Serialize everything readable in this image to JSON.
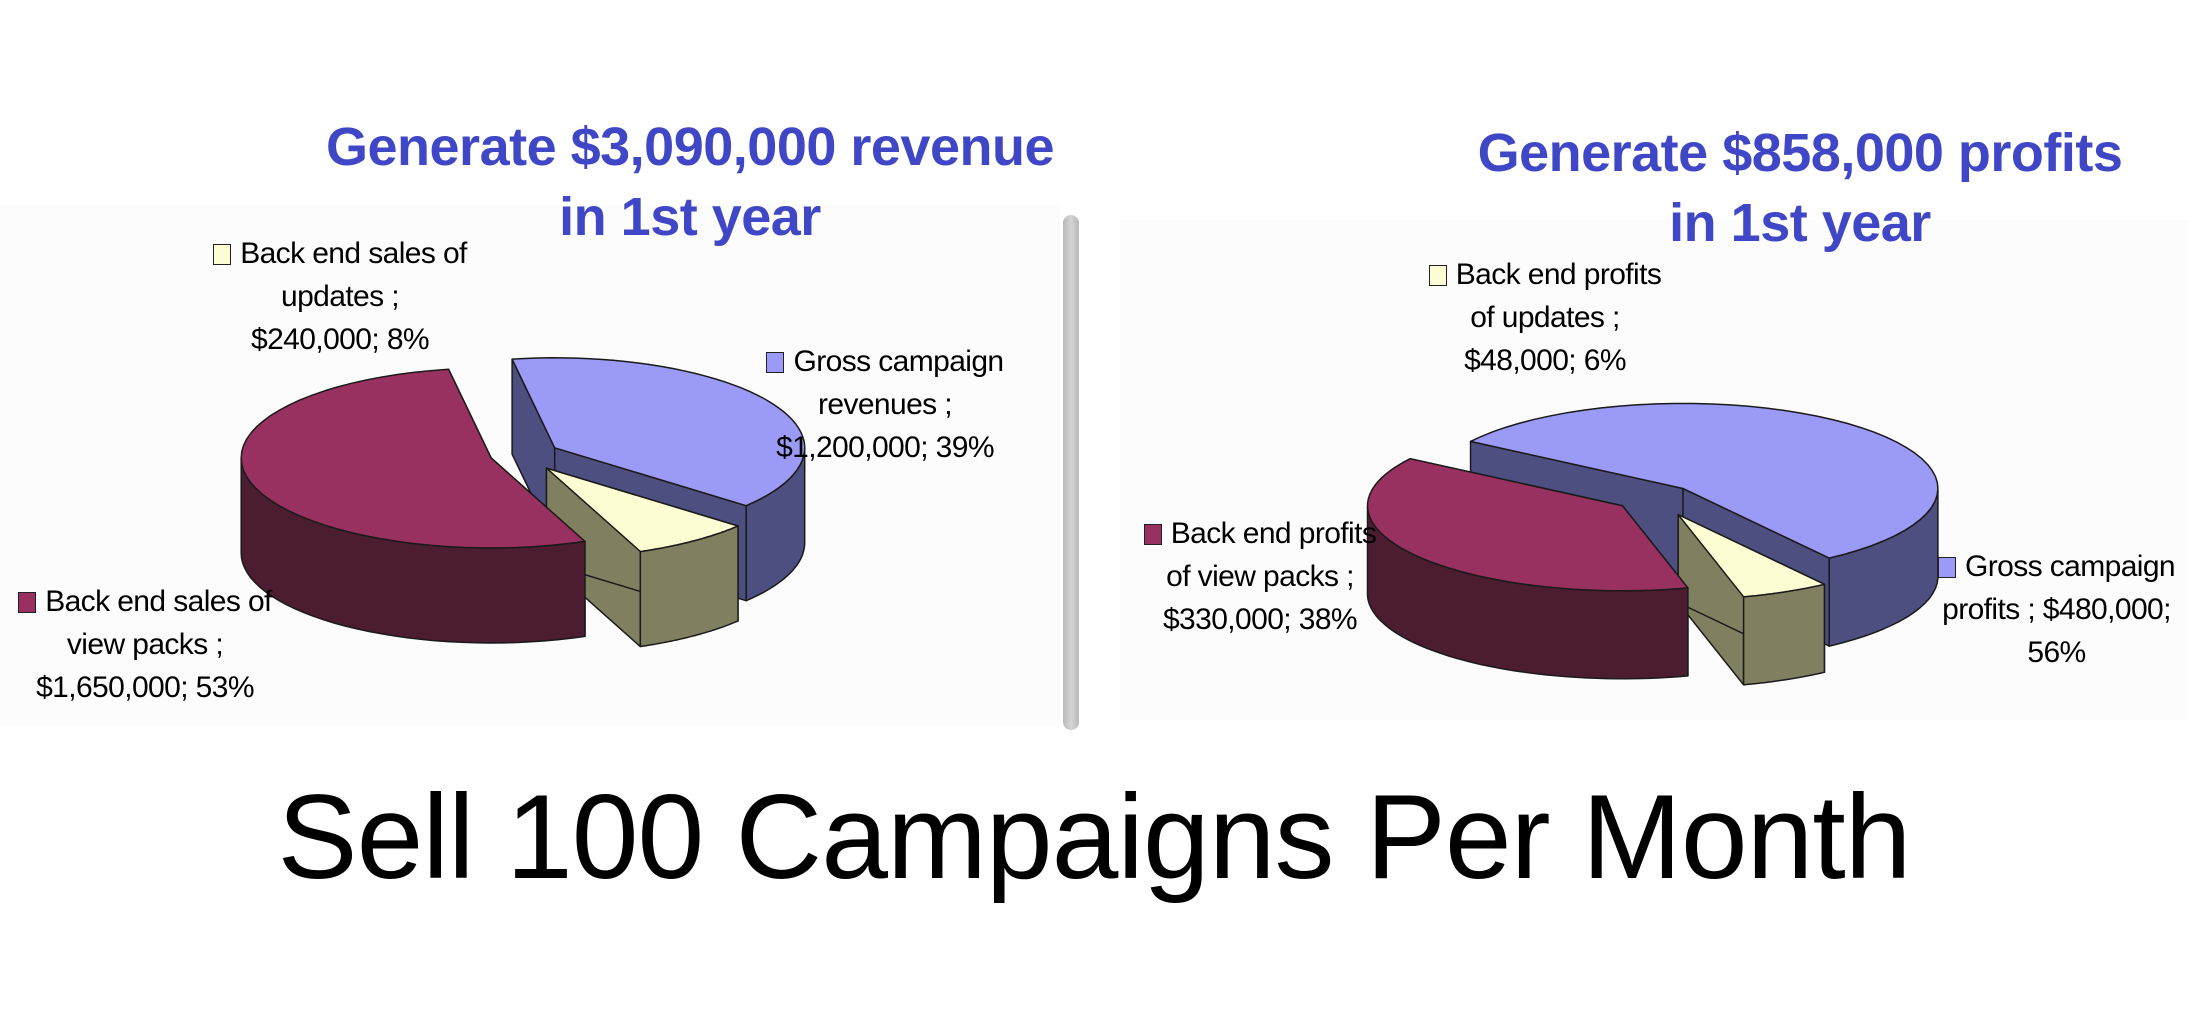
{
  "colors": {
    "title": "#3f47c6",
    "gross_top": "#9b9bf7",
    "gross_side": "#4d4f80",
    "view_top": "#993160",
    "view_side": "#4c1d31",
    "updates_top": "#fdfdd3",
    "updates_side": "#808060"
  },
  "chart_data": [
    {
      "type": "pie",
      "title": "Generate $3,090,000 revenue in 1st year",
      "title_lines": [
        "Generate $3,090,000 revenue",
        "in 1st year"
      ],
      "slices": [
        {
          "name": "Gross campaign revenues",
          "value": 1200000,
          "percent": 39,
          "label_lines": [
            "Gross campaign",
            "revenues ;",
            "$1,200,000; 39%"
          ]
        },
        {
          "name": "Back end sales of view packs",
          "value": 1650000,
          "percent": 53,
          "label_lines": [
            "Back end sales of",
            "view packs ;",
            "$1,650,000; 53%"
          ]
        },
        {
          "name": "Back end sales of updates",
          "value": 240000,
          "percent": 8,
          "label_lines": [
            "Back end sales of",
            "updates ;",
            "$240,000; 8%"
          ]
        }
      ],
      "legend": "none",
      "three_d": true
    },
    {
      "type": "pie",
      "title": "Generate $858,000 profits in 1st year",
      "title_lines": [
        "Generate $858,000 profits",
        "in 1st year"
      ],
      "slices": [
        {
          "name": "Gross campaign profits",
          "value": 480000,
          "percent": 56,
          "label_lines": [
            "Gross campaign",
            "profits ; $480,000;",
            "56%"
          ]
        },
        {
          "name": "Back end profits of view packs",
          "value": 330000,
          "percent": 38,
          "label_lines": [
            "Back end profits",
            "of view packs ;",
            "$330,000; 38%"
          ]
        },
        {
          "name": "Back end profits of updates",
          "value": 48000,
          "percent": 6,
          "label_lines": [
            "Back end profits",
            "of updates ;",
            "$48,000; 6%"
          ]
        }
      ],
      "legend": "none",
      "three_d": true
    }
  ],
  "footer": "Sell 100 Campaigns Per Month"
}
